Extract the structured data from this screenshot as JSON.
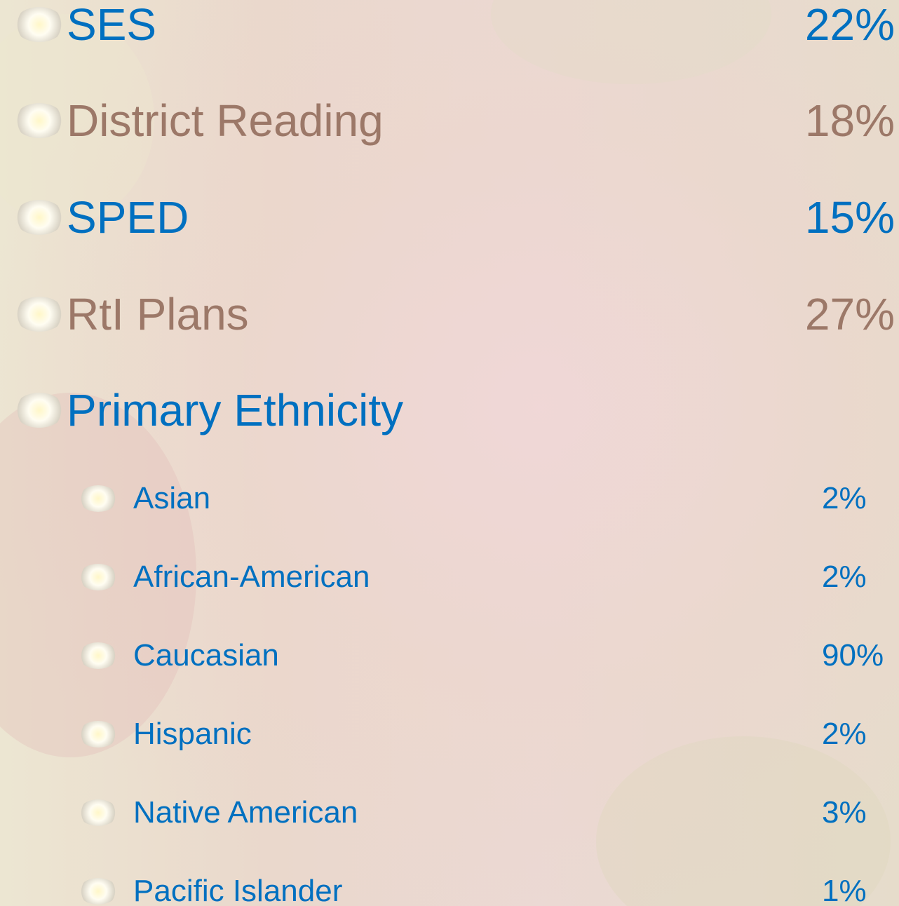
{
  "items": [
    {
      "label": "SES",
      "value": "22%"
    },
    {
      "label": "District Reading",
      "value": "18%"
    },
    {
      "label": "SPED",
      "value": "15%"
    },
    {
      "label": "RtI Plans",
      "value": "27%"
    },
    {
      "label": "Primary Ethnicity"
    }
  ],
  "subitems": [
    {
      "label": "Asian",
      "value": "2%"
    },
    {
      "label": "African-American",
      "value": "2%"
    },
    {
      "label": "Caucasian",
      "value": "90%"
    },
    {
      "label": "Hispanic",
      "value": "2%"
    },
    {
      "label": "Native American",
      "value": "3%"
    },
    {
      "label": "Pacific Islander",
      "value": "1%"
    }
  ]
}
